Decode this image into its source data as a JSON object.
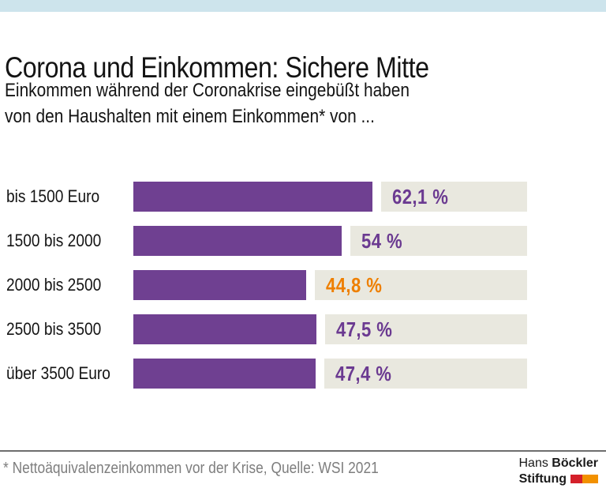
{
  "page": {
    "top_band_color": "#cde4ec",
    "background": "#ffffff"
  },
  "header": {
    "title": "Corona und Einkommen: Sichere Mitte",
    "subtitle_line1": "Einkommen während der Coronakrise eingebüßt haben",
    "subtitle_line2": "von den Haushalten mit einem Einkommen* von ..."
  },
  "chart_data": {
    "type": "bar",
    "orientation": "horizontal",
    "title": "Corona und Einkommen: Sichere Mitte",
    "categories": [
      "bis 1500 Euro",
      "1500 bis 2000",
      "2000 bis 2500",
      "2500 bis 3500",
      "über 3500 Euro"
    ],
    "values": [
      62.1,
      54,
      44.8,
      47.5,
      47.4
    ],
    "value_labels": [
      "62,1 %",
      "54 %",
      "44,8 %",
      "47,5 %",
      "47,4 %"
    ],
    "unit": "%",
    "xlim": [
      0,
      100
    ],
    "grid": false,
    "legend": false,
    "bar_color": "#6f4091",
    "track_color": "#e9e8df",
    "value_label_colors": [
      "#6b3a91",
      "#6b3a91",
      "#ee7f00",
      "#6b3a91",
      "#6b3a91"
    ]
  },
  "footer": {
    "divider_color": "#6e6e6e",
    "note": "* Nettoäquivalenzeinkommen vor der Krise, Quelle: WSI 2021",
    "note_color": "#7e7e7e",
    "logo": {
      "line1_regular": "Hans",
      "line1_bold": "Böckler",
      "line2_bold": "Stiftung",
      "mark_colors": [
        "#d4202a",
        "#f29100"
      ]
    }
  }
}
